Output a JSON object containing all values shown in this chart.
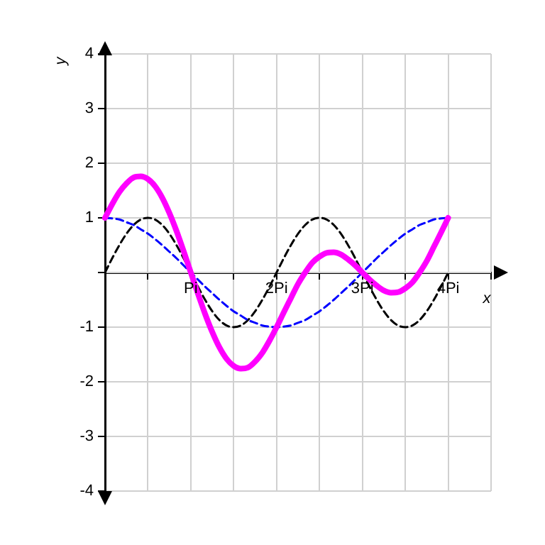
{
  "chart_data": {
    "type": "line",
    "xlabel": "x",
    "ylabel": "y",
    "categories": [
      null,
      null,
      null,
      null,
      null,
      null,
      null,
      null,
      null,
      null,
      null,
      null,
      "Pi",
      null,
      null,
      null,
      null,
      null,
      null,
      null,
      null,
      null,
      null,
      null,
      "2Pi",
      null,
      null,
      null,
      null,
      null,
      null,
      null,
      null,
      null,
      null,
      null,
      "3Pi",
      null,
      null,
      null,
      null,
      null,
      null,
      null,
      null,
      null,
      null,
      null,
      "4Pi",
      null,
      null,
      null,
      null,
      null,
      null
    ],
    "series": [
      {
        "color": "#000000",
        "line_style": "dashed",
        "values": [
          0,
          0.26,
          0.5,
          0.71,
          0.87,
          0.97,
          1,
          0.97,
          0.87,
          0.71,
          0.5,
          0.26,
          0,
          -0.26,
          -0.5,
          -0.71,
          -0.87,
          -0.97,
          -1,
          -0.97,
          -0.87,
          -0.71,
          -0.5,
          -0.26,
          0,
          0.26,
          0.5,
          0.71,
          0.87,
          0.97,
          1,
          0.97,
          0.87,
          0.71,
          0.5,
          0.26,
          0,
          -0.26,
          -0.5,
          -0.71,
          -0.87,
          -0.97,
          -1,
          -0.97,
          -0.87,
          -0.71,
          -0.5,
          -0.26,
          0,
          null,
          null,
          null,
          null,
          null,
          null
        ]
      },
      {
        "color": "#0000ff",
        "line_style": "dashed",
        "values": [
          1,
          0.99,
          0.97,
          0.92,
          0.87,
          0.79,
          0.71,
          0.61,
          0.5,
          0.38,
          0.26,
          0.13,
          0,
          -0.13,
          -0.26,
          -0.38,
          -0.5,
          -0.61,
          -0.71,
          -0.79,
          -0.87,
          -0.92,
          -0.97,
          -0.99,
          -1,
          -0.99,
          -0.97,
          -0.92,
          -0.87,
          -0.79,
          -0.71,
          -0.61,
          -0.5,
          -0.38,
          -0.26,
          -0.13,
          0,
          0.13,
          0.26,
          0.38,
          0.5,
          0.61,
          0.71,
          0.79,
          0.87,
          0.92,
          0.97,
          0.99,
          1,
          null,
          null,
          null,
          null,
          null,
          null
        ]
      },
      {
        "color": "#ff00ff",
        "line_style": "solid",
        "values": [
          1,
          1.25,
          1.47,
          1.63,
          1.74,
          1.76,
          1.71,
          1.58,
          1.37,
          1.09,
          0.76,
          0.39,
          0,
          -0.39,
          -0.76,
          -1.09,
          -1.37,
          -1.58,
          -1.71,
          -1.76,
          -1.74,
          -1.63,
          -1.47,
          -1.25,
          -1,
          -0.73,
          -0.47,
          -0.21,
          0,
          0.18,
          0.29,
          0.36,
          0.37,
          0.33,
          0.24,
          0.13,
          0,
          -0.13,
          -0.24,
          -0.33,
          -0.37,
          -0.36,
          -0.29,
          -0.18,
          0,
          0.21,
          0.47,
          0.73,
          1,
          null,
          null,
          null,
          null,
          null,
          null
        ]
      }
    ],
    "ylim": [
      -4,
      4
    ],
    "yticks": [
      -4,
      -3,
      -2,
      -1,
      {
        "value": 0,
        "label": null
      },
      1,
      2,
      3,
      4
    ],
    "grid": true,
    "legend": false,
    "marker": "none"
  }
}
